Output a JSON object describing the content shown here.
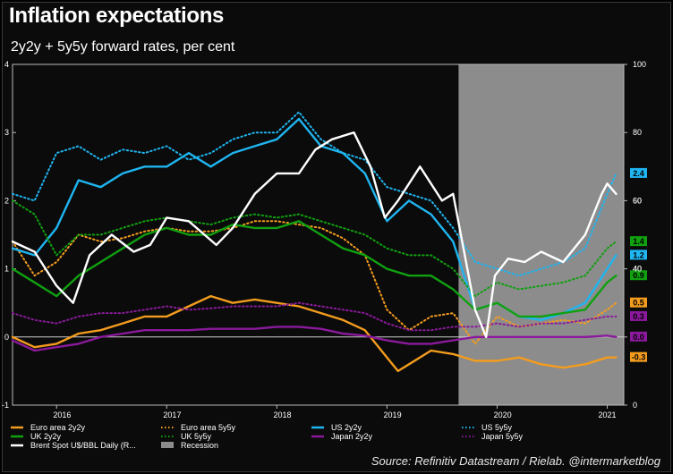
{
  "title": "Inflation expectations",
  "subtitle": "2y2y + 5y5y forward rates, per cent",
  "source": "Source: Refinitiv Datastream / Rielab. @intermarketblog",
  "chart_data": {
    "type": "line",
    "title": "Inflation expectations",
    "subtitle": "2y2y + 5y5y forward rates, per cent",
    "x_ticks": [
      "2016",
      "2017",
      "2018",
      "2019",
      "2020",
      "2021"
    ],
    "x_tick_positions": [
      2016.0,
      2017.0,
      2018.0,
      2019.0,
      2020.0,
      2021.0
    ],
    "xlim": [
      2015.6,
      2021.15
    ],
    "y_left": {
      "ylim": [
        -1,
        4
      ],
      "ticks": [
        "-1",
        "0",
        "1",
        "2",
        "3",
        "4"
      ]
    },
    "y_right": {
      "ylim": [
        0,
        100
      ],
      "ticks": [
        "0",
        "20",
        "40",
        "60",
        "80",
        "100"
      ]
    },
    "grid": false,
    "recession": {
      "label": "Recession",
      "start": 2019.65,
      "end": 2021.15,
      "color": "#8c8c8c"
    },
    "series": [
      {
        "name": "Euro area 2y2y",
        "axis": "left",
        "color": "#f39c1e",
        "dash": "solid",
        "x": [
          2015.6,
          2015.8,
          2016.0,
          2016.2,
          2016.4,
          2016.6,
          2016.8,
          2017.0,
          2017.2,
          2017.4,
          2017.6,
          2017.8,
          2018.0,
          2018.2,
          2018.4,
          2018.6,
          2018.8,
          2019.0,
          2019.1,
          2019.2,
          2019.4,
          2019.6,
          2019.8,
          2020.0,
          2020.2,
          2020.4,
          2020.6,
          2020.8,
          2021.0,
          2021.08
        ],
        "y": [
          0.0,
          -0.15,
          -0.1,
          0.05,
          0.1,
          0.2,
          0.3,
          0.3,
          0.45,
          0.6,
          0.5,
          0.55,
          0.5,
          0.45,
          0.35,
          0.25,
          0.1,
          -0.3,
          -0.5,
          -0.4,
          -0.2,
          -0.25,
          -0.35,
          -0.35,
          -0.3,
          -0.4,
          -0.45,
          -0.4,
          -0.3,
          -0.3
        ]
      },
      {
        "name": "Euro area 5y5y",
        "axis": "left",
        "color": "#f39c1e",
        "dash": "dotted",
        "x": [
          2015.6,
          2015.8,
          2016.0,
          2016.2,
          2016.4,
          2016.6,
          2016.8,
          2017.0,
          2017.2,
          2017.4,
          2017.6,
          2017.8,
          2018.0,
          2018.2,
          2018.4,
          2018.6,
          2018.8,
          2019.0,
          2019.2,
          2019.4,
          2019.6,
          2019.8,
          2020.0,
          2020.2,
          2020.4,
          2020.6,
          2020.8,
          2021.0,
          2021.08
        ],
        "y": [
          1.4,
          0.9,
          1.1,
          1.5,
          1.4,
          1.45,
          1.55,
          1.6,
          1.55,
          1.55,
          1.6,
          1.7,
          1.7,
          1.65,
          1.6,
          1.45,
          1.2,
          0.4,
          0.1,
          0.3,
          0.35,
          -0.1,
          0.3,
          0.15,
          0.2,
          0.25,
          0.2,
          0.4,
          0.5
        ]
      },
      {
        "name": "US 2y2y",
        "axis": "left",
        "color": "#1fb5f0",
        "dash": "solid",
        "x": [
          2015.6,
          2015.8,
          2016.0,
          2016.2,
          2016.4,
          2016.6,
          2016.8,
          2017.0,
          2017.2,
          2017.4,
          2017.6,
          2017.8,
          2018.0,
          2018.2,
          2018.4,
          2018.6,
          2018.8,
          2019.0,
          2019.2,
          2019.4,
          2019.6,
          2019.8,
          2020.0,
          2020.2,
          2020.4,
          2020.6,
          2020.8,
          2021.0,
          2021.08
        ],
        "y": [
          1.3,
          1.2,
          1.6,
          2.3,
          2.2,
          2.4,
          2.5,
          2.5,
          2.7,
          2.5,
          2.7,
          2.8,
          2.9,
          3.2,
          2.8,
          2.7,
          2.4,
          1.7,
          2.0,
          1.8,
          1.4,
          0.4,
          0.5,
          0.3,
          0.25,
          0.35,
          0.5,
          1.0,
          1.2
        ]
      },
      {
        "name": "US 5y5y",
        "axis": "left",
        "color": "#1fb5f0",
        "dash": "dotted",
        "x": [
          2015.6,
          2015.8,
          2016.0,
          2016.2,
          2016.4,
          2016.6,
          2016.8,
          2017.0,
          2017.2,
          2017.4,
          2017.6,
          2017.8,
          2018.0,
          2018.2,
          2018.4,
          2018.6,
          2018.8,
          2019.0,
          2019.2,
          2019.4,
          2019.6,
          2019.8,
          2020.0,
          2020.2,
          2020.4,
          2020.6,
          2020.8,
          2021.0,
          2021.08
        ],
        "y": [
          2.1,
          2.0,
          2.7,
          2.8,
          2.6,
          2.75,
          2.7,
          2.8,
          2.6,
          2.7,
          2.9,
          3.0,
          3.0,
          3.3,
          2.9,
          2.7,
          2.6,
          2.2,
          2.1,
          2.0,
          1.6,
          1.1,
          1.0,
          0.9,
          1.0,
          1.1,
          1.3,
          2.1,
          2.4
        ]
      },
      {
        "name": "UK 2y2y",
        "axis": "left",
        "color": "#10a010",
        "dash": "solid",
        "x": [
          2015.6,
          2015.8,
          2016.0,
          2016.2,
          2016.4,
          2016.6,
          2016.8,
          2017.0,
          2017.2,
          2017.4,
          2017.6,
          2017.8,
          2018.0,
          2018.2,
          2018.4,
          2018.6,
          2018.8,
          2019.0,
          2019.2,
          2019.4,
          2019.6,
          2019.8,
          2020.0,
          2020.2,
          2020.4,
          2020.6,
          2020.8,
          2021.0,
          2021.08
        ],
        "y": [
          1.0,
          0.8,
          0.6,
          0.9,
          1.1,
          1.3,
          1.5,
          1.6,
          1.5,
          1.5,
          1.65,
          1.6,
          1.6,
          1.7,
          1.5,
          1.3,
          1.2,
          1.0,
          0.9,
          0.9,
          0.7,
          0.4,
          0.5,
          0.3,
          0.3,
          0.35,
          0.4,
          0.8,
          0.9
        ]
      },
      {
        "name": "UK 5y5y",
        "axis": "left",
        "color": "#10a010",
        "dash": "dotted",
        "x": [
          2015.6,
          2015.8,
          2016.0,
          2016.2,
          2016.4,
          2016.6,
          2016.8,
          2017.0,
          2017.2,
          2017.4,
          2017.6,
          2017.8,
          2018.0,
          2018.2,
          2018.4,
          2018.6,
          2018.8,
          2019.0,
          2019.2,
          2019.4,
          2019.6,
          2019.8,
          2020.0,
          2020.2,
          2020.4,
          2020.6,
          2020.8,
          2021.0,
          2021.08
        ],
        "y": [
          2.0,
          1.8,
          1.2,
          1.5,
          1.5,
          1.6,
          1.7,
          1.75,
          1.7,
          1.65,
          1.75,
          1.8,
          1.75,
          1.8,
          1.7,
          1.6,
          1.5,
          1.3,
          1.2,
          1.2,
          1.0,
          0.6,
          0.8,
          0.7,
          0.75,
          0.8,
          0.9,
          1.3,
          1.4
        ]
      },
      {
        "name": "Japan 2y2y",
        "axis": "left",
        "color": "#8a1a9b",
        "dash": "solid",
        "x": [
          2015.6,
          2015.8,
          2016.0,
          2016.2,
          2016.4,
          2016.6,
          2016.8,
          2017.0,
          2017.2,
          2017.4,
          2017.6,
          2017.8,
          2018.0,
          2018.2,
          2018.4,
          2018.6,
          2018.8,
          2019.0,
          2019.2,
          2019.4,
          2019.6,
          2019.8,
          2020.0,
          2020.2,
          2020.4,
          2020.6,
          2020.8,
          2021.0,
          2021.08
        ],
        "y": [
          -0.05,
          -0.2,
          -0.15,
          -0.1,
          0.0,
          0.05,
          0.1,
          0.1,
          0.1,
          0.12,
          0.12,
          0.12,
          0.15,
          0.15,
          0.12,
          0.05,
          0.02,
          -0.05,
          -0.1,
          -0.1,
          -0.05,
          0.0,
          0.0,
          0.0,
          0.0,
          0.0,
          0.0,
          0.02,
          0.0
        ]
      },
      {
        "name": "Japan 5y5y",
        "axis": "left",
        "color": "#8a1a9b",
        "dash": "dotted",
        "x": [
          2015.6,
          2015.8,
          2016.0,
          2016.2,
          2016.4,
          2016.6,
          2016.8,
          2017.0,
          2017.2,
          2017.4,
          2017.6,
          2017.8,
          2018.0,
          2018.2,
          2018.4,
          2018.6,
          2018.8,
          2019.0,
          2019.2,
          2019.4,
          2019.6,
          2019.8,
          2020.0,
          2020.2,
          2020.4,
          2020.6,
          2020.8,
          2021.0,
          2021.08
        ],
        "y": [
          0.35,
          0.25,
          0.2,
          0.3,
          0.35,
          0.35,
          0.4,
          0.45,
          0.4,
          0.42,
          0.45,
          0.45,
          0.45,
          0.5,
          0.45,
          0.4,
          0.35,
          0.2,
          0.1,
          0.1,
          0.15,
          0.15,
          0.2,
          0.15,
          0.2,
          0.2,
          0.25,
          0.3,
          0.3
        ]
      },
      {
        "name": "Brent Spot U$/BBL Daily (R...",
        "axis": "right",
        "color": "#ffffff",
        "dash": "solid",
        "x": [
          2015.6,
          2015.8,
          2016.0,
          2016.15,
          2016.3,
          2016.5,
          2016.7,
          2016.85,
          2017.0,
          2017.2,
          2017.45,
          2017.6,
          2017.8,
          2018.0,
          2018.2,
          2018.35,
          2018.5,
          2018.7,
          2018.85,
          2018.98,
          2019.1,
          2019.3,
          2019.5,
          2019.6,
          2019.7,
          2019.8,
          2019.9,
          2019.98,
          2020.1,
          2020.25,
          2020.4,
          2020.6,
          2020.8,
          2020.95,
          2021.0,
          2021.08
        ],
        "y": [
          48,
          45,
          35,
          30,
          44,
          50,
          45,
          47,
          55,
          54,
          47,
          52,
          62,
          68,
          68,
          75,
          78,
          80,
          70,
          55,
          60,
          70,
          60,
          62,
          45,
          28,
          20,
          38,
          43,
          42,
          45,
          42,
          50,
          62,
          65,
          62
        ]
      }
    ],
    "end_labels": [
      {
        "text": "2.4",
        "series": "US 5y5y",
        "value": 2.4,
        "color": "#1fb5f0"
      },
      {
        "text": "1.4",
        "series": "UK 5y5y",
        "value": 1.4,
        "color": "#10a010"
      },
      {
        "text": "1.2",
        "series": "US 2y2y",
        "value": 1.2,
        "color": "#1fb5f0"
      },
      {
        "text": "0.9",
        "series": "UK 2y2y",
        "value": 0.9,
        "color": "#10a010"
      },
      {
        "text": "0.5",
        "series": "Euro area 5y5y",
        "value": 0.5,
        "color": "#f39c1e"
      },
      {
        "text": "0.3",
        "series": "Japan 5y5y",
        "value": 0.3,
        "color": "#8a1a9b"
      },
      {
        "text": "0.0",
        "series": "Japan 2y2y",
        "value": 0.0,
        "color": "#8a1a9b"
      },
      {
        "text": "-0.3",
        "series": "Euro area 2y2y",
        "value": -0.3,
        "color": "#f39c1e"
      }
    ],
    "right_axis_labels": [
      {
        "text": "60",
        "value": 60
      },
      {
        "text": "40",
        "value": 40
      }
    ]
  }
}
